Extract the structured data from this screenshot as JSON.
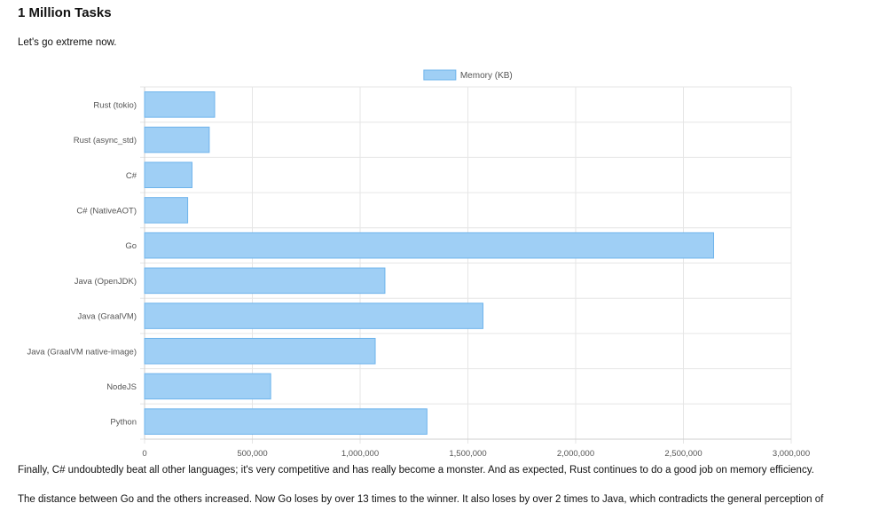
{
  "section": {
    "title": "1 Million Tasks",
    "intro": "Let's go extreme now.",
    "paragraphs": [
      "Finally, C# undoubtedly beat all other languages; it's very competitive and has really become a monster. And as expected, Rust continues to do a good job on memory efficiency.",
      "The distance between Go and the others increased. Now Go loses by over 13 times to the winner. It also loses by over 2 times to Java, which contradicts the general perception of"
    ]
  },
  "chart_data": {
    "type": "bar",
    "orientation": "horizontal",
    "categories": [
      "Rust (tokio)",
      "Rust (async_std)",
      "C#",
      "C# (NativeAOT)",
      "Go",
      "Java (OpenJDK)",
      "Java (GraalVM)",
      "Java (GraalVM native-image)",
      "NodeJS",
      "Python"
    ],
    "series": [
      {
        "name": "Memory (KB)",
        "values": [
          325000,
          300000,
          220000,
          200000,
          2640000,
          1115000,
          1570000,
          1070000,
          585000,
          1310000
        ]
      }
    ],
    "xlim": [
      0,
      3000000
    ],
    "xticks": [
      0,
      500000,
      1000000,
      1500000,
      2000000,
      2500000,
      3000000
    ],
    "xtick_labels": [
      "0",
      "500,000",
      "1,000,000",
      "1,500,000",
      "2,000,000",
      "2,500,000",
      "3,000,000"
    ],
    "grid": true,
    "legend_position": "top",
    "colors": {
      "bar_fill": "#9fcff5",
      "bar_stroke": "#6fb4ec",
      "grid": "#e6e6e6"
    }
  }
}
